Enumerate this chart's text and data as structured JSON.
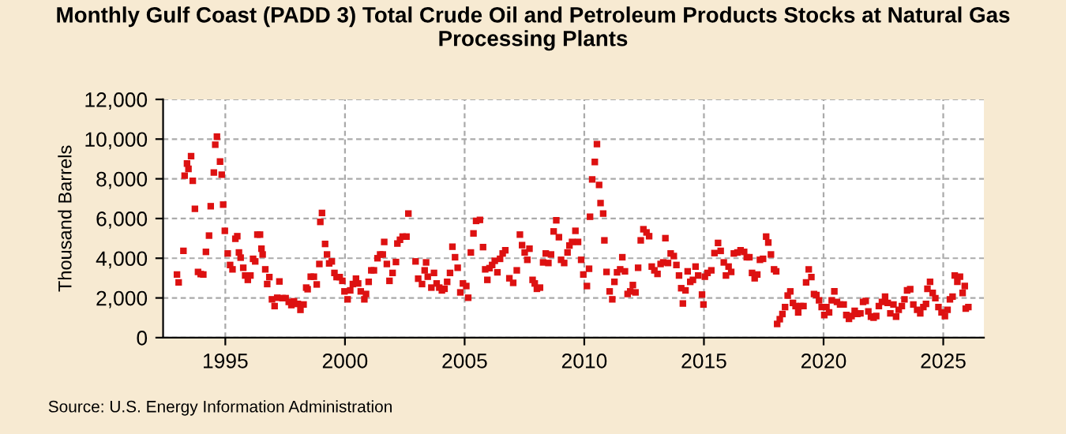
{
  "chart_data": {
    "type": "scatter",
    "title": "Monthly Gulf Coast (PADD 3) Total Crude Oil and Petroleum Products Stocks at Natural Gas\nProcessing Plants",
    "ylabel": "Thousand Barrels",
    "annotations": [
      "Source: U.S. Energy Information Administration"
    ],
    "xlim": [
      1992.4,
      2026.7
    ],
    "xticks": [
      1995,
      2000,
      2005,
      2010,
      2015,
      2020,
      2025
    ],
    "ylim": [
      0,
      12000
    ],
    "yticks": [
      {
        "value": 0,
        "label": "0"
      },
      {
        "value": 2000,
        "label": "2,000"
      },
      {
        "value": 4000,
        "label": "4,000"
      },
      {
        "value": 6000,
        "label": "6,000"
      },
      {
        "value": 8000,
        "label": "8,000"
      },
      {
        "value": 10000,
        "label": "10,000"
      },
      {
        "value": 12000,
        "label": "12,000"
      }
    ],
    "grid": true,
    "marker": "square",
    "series": [
      {
        "color": "#dd1111",
        "x": [
          1992.98,
          1993.05,
          1993.25,
          1993.3,
          1993.4,
          1993.46,
          1993.57,
          1993.64,
          1993.73,
          1993.86,
          1993.97,
          1994.08,
          1994.19,
          1994.32,
          1994.39,
          1994.52,
          1994.58,
          1994.65,
          1994.78,
          1994.85,
          1994.91,
          1994.98,
          1995.1,
          1995.2,
          1995.3,
          1995.42,
          1995.5,
          1995.57,
          1995.64,
          1995.75,
          1995.83,
          1995.94,
          1996.05,
          1996.16,
          1996.25,
          1996.34,
          1996.45,
          1996.51,
          1996.56,
          1996.67,
          1996.75,
          1996.84,
          1996.95,
          1997.06,
          1997.17,
          1997.26,
          1997.39,
          1997.52,
          1997.65,
          1997.76,
          1997.87,
          1998.03,
          1998.14,
          1998.27,
          1998.38,
          1998.44,
          1998.57,
          1998.7,
          1998.82,
          1998.93,
          1998.97,
          1999.04,
          1999.17,
          1999.25,
          1999.34,
          1999.45,
          1999.56,
          1999.65,
          1999.78,
          1999.89,
          1999.98,
          2000.11,
          2000.22,
          2000.33,
          2000.46,
          2000.55,
          2000.66,
          2000.81,
          2000.88,
          2000.99,
          2001.1,
          2001.21,
          2001.36,
          2001.47,
          2001.58,
          2001.64,
          2001.75,
          2001.86,
          2001.99,
          2002.13,
          2002.19,
          2002.3,
          2002.41,
          2002.57,
          2002.65,
          2002.95,
          2003.06,
          2003.22,
          2003.33,
          2003.39,
          2003.46,
          2003.61,
          2003.72,
          2003.83,
          2003.94,
          2004.05,
          2004.16,
          2004.27,
          2004.39,
          2004.49,
          2004.6,
          2004.71,
          2004.82,
          2004.93,
          2005.07,
          2005.15,
          2005.26,
          2005.37,
          2005.48,
          2005.64,
          2005.77,
          2005.86,
          2005.95,
          2006.04,
          2006.15,
          2006.26,
          2006.37,
          2006.48,
          2006.59,
          2006.7,
          2006.87,
          2007.03,
          2007.18,
          2007.31,
          2007.4,
          2007.51,
          2007.62,
          2007.71,
          2007.84,
          2007.93,
          2008.02,
          2008.15,
          2008.28,
          2008.39,
          2008.5,
          2008.61,
          2008.72,
          2008.83,
          2008.94,
          2009.03,
          2009.16,
          2009.3,
          2009.38,
          2009.49,
          2009.63,
          2009.74,
          2009.87,
          2009.96,
          2010.11,
          2010.2,
          2010.24,
          2010.33,
          2010.44,
          2010.53,
          2010.62,
          2010.68,
          2010.79,
          2010.84,
          2010.93,
          2011.06,
          2011.17,
          2011.26,
          2011.37,
          2011.5,
          2011.59,
          2011.7,
          2011.81,
          2011.92,
          2012.03,
          2012.14,
          2012.25,
          2012.36,
          2012.47,
          2012.6,
          2012.71,
          2012.82,
          2012.93,
          2013.06,
          2013.19,
          2013.3,
          2013.39,
          2013.5,
          2013.61,
          2013.74,
          2013.85,
          2013.96,
          2014.05,
          2014.12,
          2014.23,
          2014.32,
          2014.43,
          2014.54,
          2014.65,
          2014.76,
          2014.92,
          2014.98,
          2015.04,
          2015.15,
          2015.31,
          2015.44,
          2015.59,
          2015.7,
          2015.83,
          2015.92,
          2016.03,
          2016.14,
          2016.25,
          2016.4,
          2016.53,
          2016.68,
          2016.79,
          2016.9,
          2017.01,
          2017.12,
          2017.23,
          2017.34,
          2017.47,
          2017.6,
          2017.69,
          2017.8,
          2017.93,
          2018.02,
          2018.06,
          2018.17,
          2018.28,
          2018.39,
          2018.5,
          2018.61,
          2018.72,
          2018.83,
          2018.94,
          2019.05,
          2019.16,
          2019.27,
          2019.38,
          2019.49,
          2019.6,
          2019.7,
          2019.81,
          2019.92,
          2020.03,
          2020.12,
          2020.23,
          2020.34,
          2020.45,
          2020.56,
          2020.69,
          2020.84,
          2020.95,
          2021.06,
          2021.17,
          2021.3,
          2021.41,
          2021.54,
          2021.65,
          2021.76,
          2021.87,
          2021.98,
          2022.09,
          2022.2,
          2022.31,
          2022.44,
          2022.57,
          2022.68,
          2022.79,
          2022.92,
          2023.03,
          2023.14,
          2023.27,
          2023.38,
          2023.49,
          2023.62,
          2023.75,
          2023.91,
          2024.04,
          2024.17,
          2024.28,
          2024.34,
          2024.45,
          2024.56,
          2024.67,
          2024.8,
          2024.93,
          2025.07,
          2025.18,
          2025.28,
          2025.39,
          2025.48,
          2025.59,
          2025.7,
          2025.81,
          2025.9,
          2025.94,
          2026.05
        ],
        "values": [
          3180,
          2780,
          4370,
          8160,
          8770,
          8500,
          9140,
          7900,
          6490,
          3310,
          3200,
          3180,
          4320,
          5140,
          6620,
          8320,
          9720,
          10120,
          8870,
          8210,
          6700,
          5380,
          4240,
          3660,
          3440,
          4980,
          5110,
          4290,
          4030,
          3520,
          3130,
          2910,
          3130,
          3970,
          3840,
          5190,
          5190,
          4480,
          4190,
          3440,
          2700,
          3050,
          1930,
          1590,
          2010,
          2830,
          1990,
          1990,
          1800,
          1640,
          1830,
          1700,
          1400,
          1670,
          2520,
          2440,
          3070,
          3070,
          2680,
          3710,
          5830,
          6280,
          4720,
          4190,
          3740,
          3840,
          3260,
          3050,
          3050,
          2860,
          2330,
          1930,
          2380,
          2700,
          2970,
          2730,
          2330,
          1930,
          2200,
          2810,
          3390,
          3390,
          4000,
          4190,
          4190,
          4820,
          3710,
          2860,
          3260,
          3810,
          4740,
          4930,
          5090,
          5090,
          6250,
          3840,
          2970,
          2700,
          3390,
          3790,
          3070,
          2520,
          3260,
          2730,
          2520,
          2380,
          2460,
          2810,
          3260,
          4580,
          4050,
          3520,
          2280,
          2730,
          2600,
          2010,
          4290,
          5250,
          5880,
          5930,
          4560,
          3440,
          2910,
          3500,
          3660,
          3870,
          3290,
          3970,
          4240,
          4400,
          2990,
          2760,
          3390,
          5190,
          4660,
          4290,
          3920,
          4480,
          2910,
          2730,
          2460,
          2520,
          3790,
          4240,
          3760,
          4190,
          5350,
          5910,
          5060,
          3920,
          3760,
          4290,
          4640,
          4820,
          5380,
          4820,
          3920,
          3180,
          2600,
          3470,
          6090,
          7970,
          8850,
          9750,
          7690,
          6780,
          6250,
          4900,
          3310,
          2330,
          1930,
          2810,
          3290,
          3440,
          4050,
          3340,
          2200,
          2330,
          2650,
          2280,
          3520,
          4900,
          5460,
          5300,
          5110,
          3580,
          3390,
          3210,
          3710,
          3790,
          5010,
          3760,
          4240,
          4110,
          3660,
          3130,
          2490,
          1720,
          2380,
          3340,
          2810,
          2910,
          3580,
          3130,
          2170,
          1670,
          3070,
          3260,
          3390,
          4260,
          4770,
          4370,
          3790,
          3130,
          3580,
          3310,
          4240,
          4290,
          4400,
          4320,
          4050,
          4050,
          3260,
          2990,
          3180,
          3920,
          3970,
          5090,
          4790,
          4190,
          3440,
          3340,
          690,
          930,
          1190,
          1540,
          2120,
          2330,
          1750,
          1590,
          1270,
          1590,
          1590,
          2780,
          3440,
          3050,
          2200,
          2150,
          1880,
          1540,
          1140,
          1540,
          1270,
          1880,
          2330,
          1800,
          1670,
          1670,
          1140,
          950,
          1090,
          1350,
          1190,
          1220,
          1800,
          1850,
          1320,
          1060,
          1010,
          1090,
          1590,
          1800,
          2070,
          1750,
          1220,
          1670,
          1060,
          1400,
          1590,
          1930,
          2380,
          2440,
          1670,
          1400,
          1220,
          1540,
          1700,
          2460,
          2810,
          2250,
          1990,
          1540,
          1270,
          1090,
          1400,
          1930,
          2070,
          3130,
          2810,
          3070,
          2250,
          2600,
          1460,
          1540
        ]
      }
    ]
  }
}
